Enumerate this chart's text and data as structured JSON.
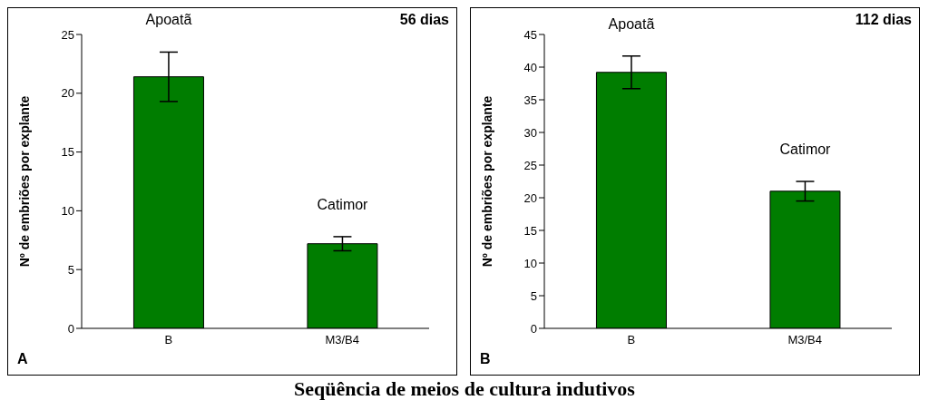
{
  "chart_data": [
    {
      "type": "bar",
      "title": "56 dias",
      "ylabel": "Nº de embriões por explante",
      "xlabel": "Seqüência de meios de cultura indutivos",
      "categories": [
        "B",
        "M3/B4"
      ],
      "values": [
        21.4,
        7.2
      ],
      "errors": [
        2.1,
        0.6
      ],
      "color": "#007d00",
      "ylim": [
        0,
        25
      ],
      "yticks": [
        0,
        5,
        10,
        15,
        20,
        25
      ],
      "grid": false,
      "legend": false,
      "annotations": [
        "Apoatã",
        "Catimor",
        "A"
      ]
    },
    {
      "type": "bar",
      "title": "112 dias",
      "ylabel": "Nº de embriões por explante",
      "categories": [
        "B",
        "M3/B4"
      ],
      "values": [
        39.2,
        21.0
      ],
      "errors": [
        2.5,
        1.5
      ],
      "color": "#007d00",
      "ylim": [
        0,
        45
      ],
      "yticks": [
        0,
        5,
        10,
        15,
        20,
        25,
        30,
        35,
        40,
        45
      ],
      "grid": false,
      "legend": false,
      "annotations": [
        "Apoatã",
        "Catimor",
        "B"
      ]
    }
  ]
}
